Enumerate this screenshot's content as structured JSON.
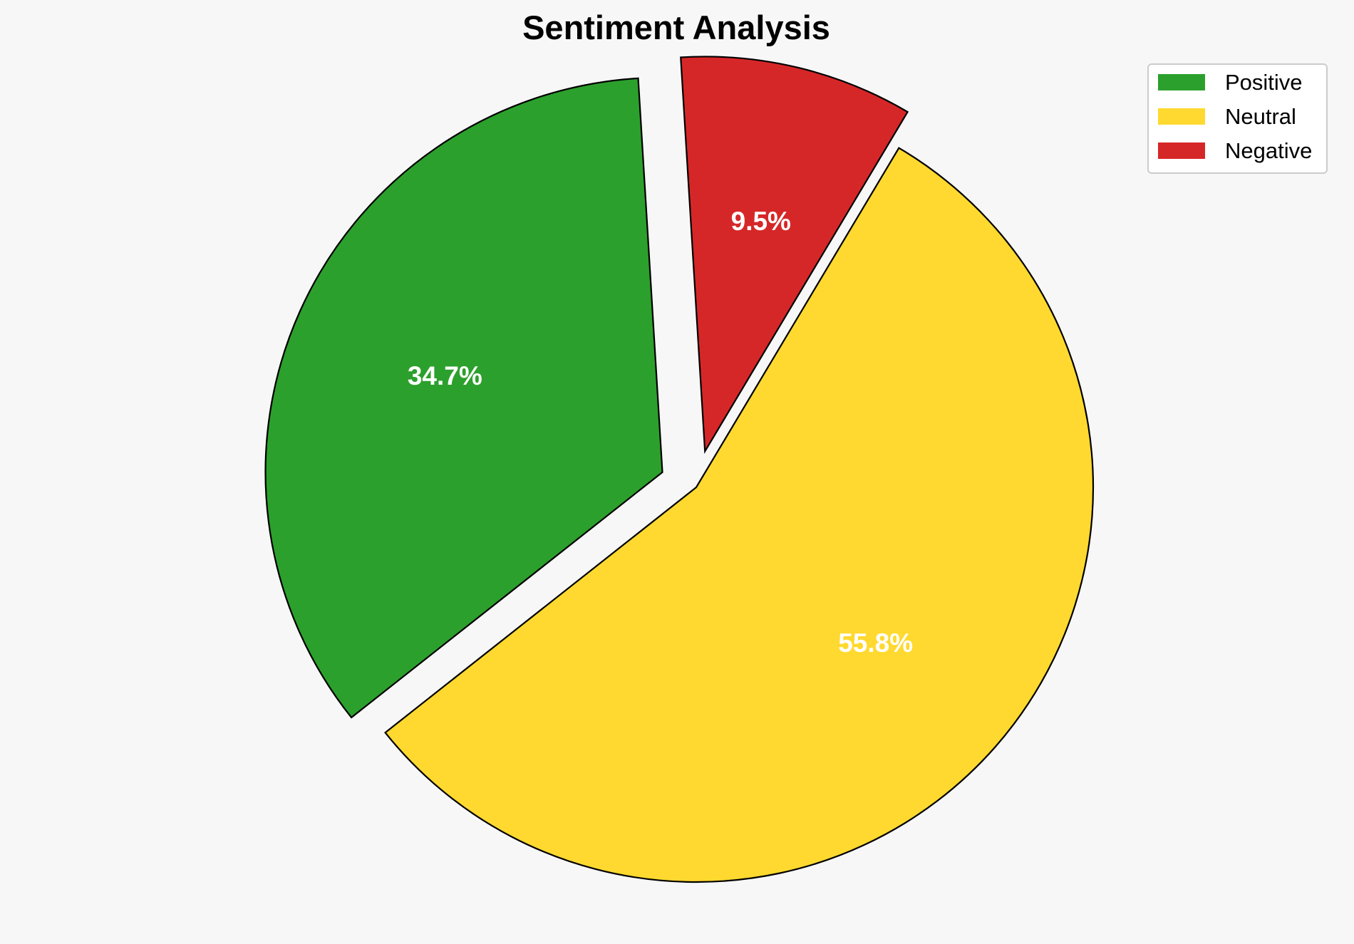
{
  "chart_data": {
    "type": "pie",
    "title": "Sentiment Analysis",
    "categories": [
      "Positive",
      "Neutral",
      "Negative"
    ],
    "values": [
      34.7,
      55.8,
      9.5
    ],
    "labels": [
      "34.7%",
      "55.8%",
      "9.5%"
    ],
    "colors": [
      "#2ca02c",
      "#ffd92f",
      "#d62728"
    ],
    "exploded": [
      true,
      false,
      true
    ],
    "legend": {
      "position": "top-right",
      "entries": [
        "Positive",
        "Neutral",
        "Negative"
      ]
    }
  }
}
